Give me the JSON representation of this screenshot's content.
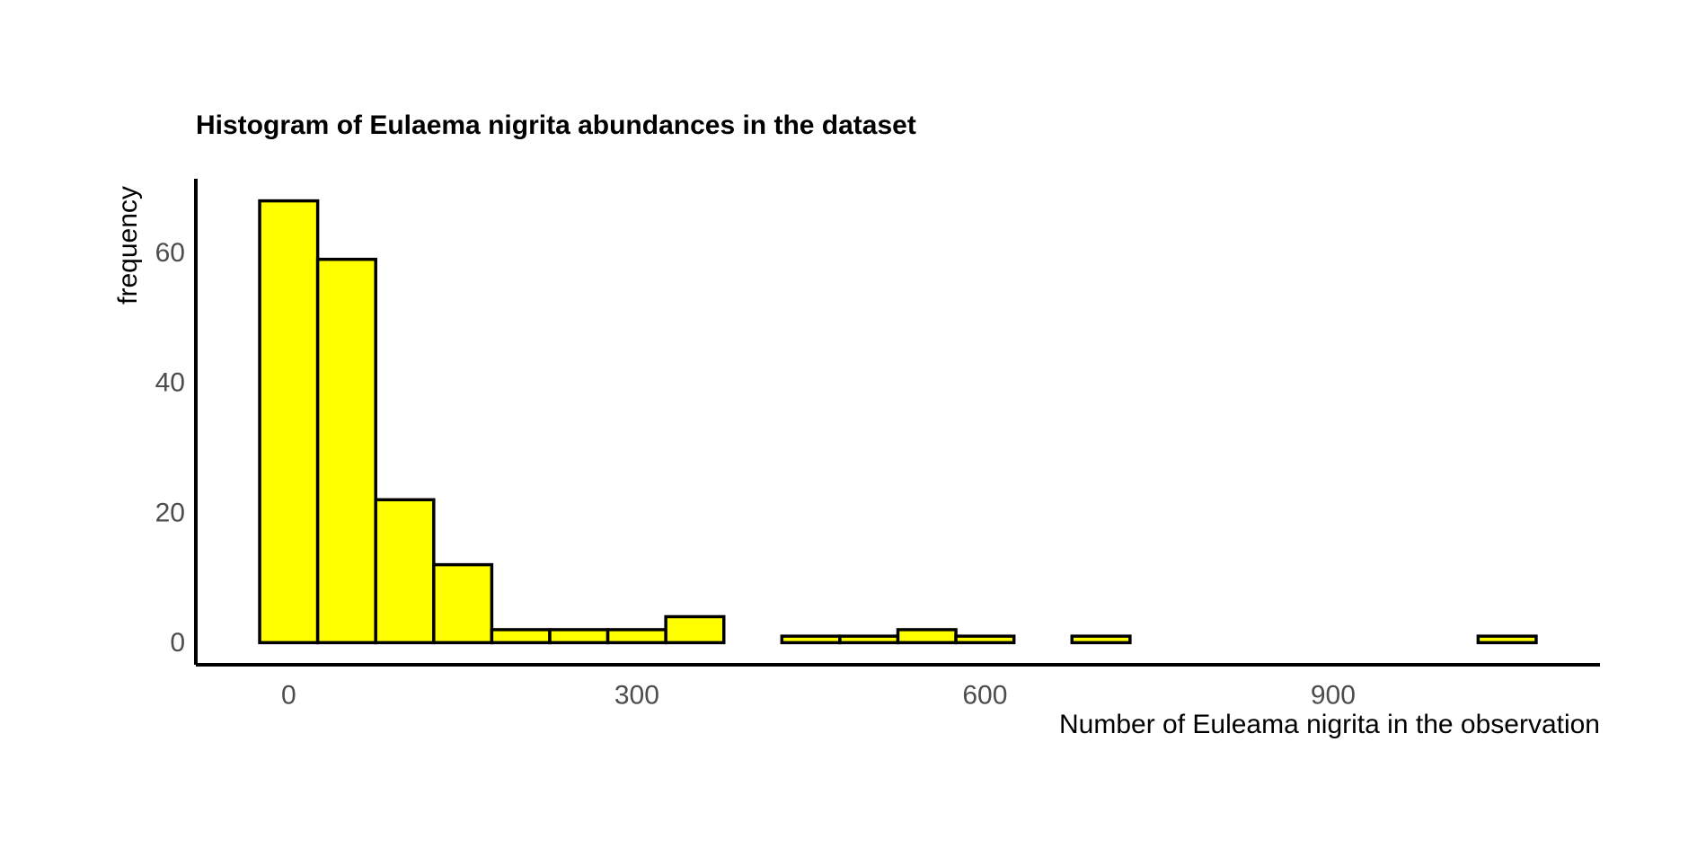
{
  "chart_data": {
    "type": "bar",
    "histogram": true,
    "title": "Histogram of Eulaema nigrita abundances in the dataset",
    "xlabel": "Number of Euleama nigrita in the observation",
    "ylabel": "frequency",
    "bin_width": 50,
    "bins": [
      {
        "x0": -25,
        "x1": 25,
        "count": 68
      },
      {
        "x0": 25,
        "x1": 75,
        "count": 59
      },
      {
        "x0": 75,
        "x1": 125,
        "count": 22
      },
      {
        "x0": 125,
        "x1": 175,
        "count": 12
      },
      {
        "x0": 175,
        "x1": 225,
        "count": 2
      },
      {
        "x0": 225,
        "x1": 275,
        "count": 2
      },
      {
        "x0": 275,
        "x1": 325,
        "count": 2
      },
      {
        "x0": 325,
        "x1": 375,
        "count": 4
      },
      {
        "x0": 375,
        "x1": 425,
        "count": 0
      },
      {
        "x0": 425,
        "x1": 475,
        "count": 1
      },
      {
        "x0": 475,
        "x1": 525,
        "count": 1
      },
      {
        "x0": 525,
        "x1": 575,
        "count": 2
      },
      {
        "x0": 575,
        "x1": 625,
        "count": 1
      },
      {
        "x0": 625,
        "x1": 675,
        "count": 0
      },
      {
        "x0": 675,
        "x1": 725,
        "count": 1
      },
      {
        "x0": 725,
        "x1": 775,
        "count": 0
      },
      {
        "x0": 775,
        "x1": 825,
        "count": 0
      },
      {
        "x0": 825,
        "x1": 875,
        "count": 0
      },
      {
        "x0": 875,
        "x1": 925,
        "count": 0
      },
      {
        "x0": 925,
        "x1": 975,
        "count": 0
      },
      {
        "x0": 975,
        "x1": 1025,
        "count": 0
      },
      {
        "x0": 1025,
        "x1": 1075,
        "count": 1
      }
    ],
    "x_ticks": [
      0,
      300,
      600,
      900
    ],
    "y_ticks": [
      0,
      20,
      40,
      60
    ],
    "xlim": [
      -80,
      1130
    ],
    "ylim": [
      -3.4,
      71.4
    ],
    "grid": false,
    "legend": "none",
    "colors": {
      "bar_fill": "#ffff00",
      "bar_stroke": "#000000",
      "axis_line": "#000000",
      "tick_text": "#4d4d4d",
      "title_text": "#000000"
    }
  }
}
